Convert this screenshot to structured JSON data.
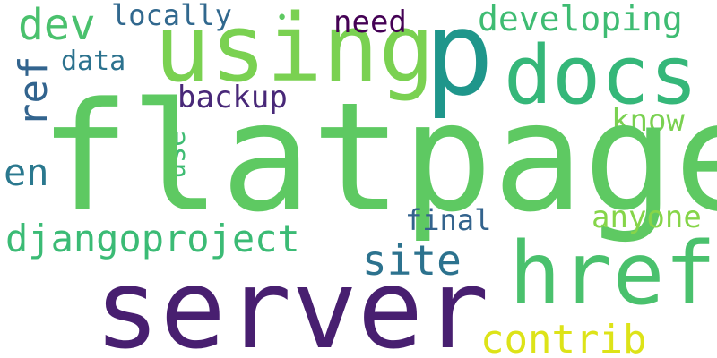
{
  "words": {
    "flatpage": {
      "text": "flatpage",
      "color": "#5ec962"
    },
    "server": {
      "text": "server",
      "color": "#481f70"
    },
    "using": {
      "text": "using",
      "color": "#7ad151"
    },
    "p": {
      "text": "p",
      "color": "#1f968b"
    },
    "docs": {
      "text": "docs",
      "color": "#35b779"
    },
    "href": {
      "text": "href",
      "color": "#4ac16d"
    },
    "djangoproject": {
      "text": "djangoproject",
      "color": "#3bbb75"
    },
    "contrib": {
      "text": "contrib",
      "color": "#dde318"
    },
    "developing": {
      "text": "developing",
      "color": "#3fbc73"
    },
    "site": {
      "text": "site",
      "color": "#2c728e"
    },
    "dev": {
      "text": "dev",
      "color": "#4ac16d"
    },
    "locally": {
      "text": "locally",
      "color": "#31688e"
    },
    "need": {
      "text": "need",
      "color": "#440154"
    },
    "data": {
      "text": "data",
      "color": "#2c728e"
    },
    "backup": {
      "text": "backup",
      "color": "#482878"
    },
    "know": {
      "text": "know",
      "color": "#7ad151"
    },
    "en": {
      "text": "en",
      "color": "#2a788e"
    },
    "final": {
      "text": "final",
      "color": "#33638d"
    },
    "anyone": {
      "text": "anyone",
      "color": "#86d549"
    },
    "ref": {
      "text": "ref",
      "color": "#32648e"
    },
    "use": {
      "text": "use",
      "color": "#3fbc73"
    },
    "dot": {
      "text": "•",
      "color": "#5ec962"
    }
  }
}
